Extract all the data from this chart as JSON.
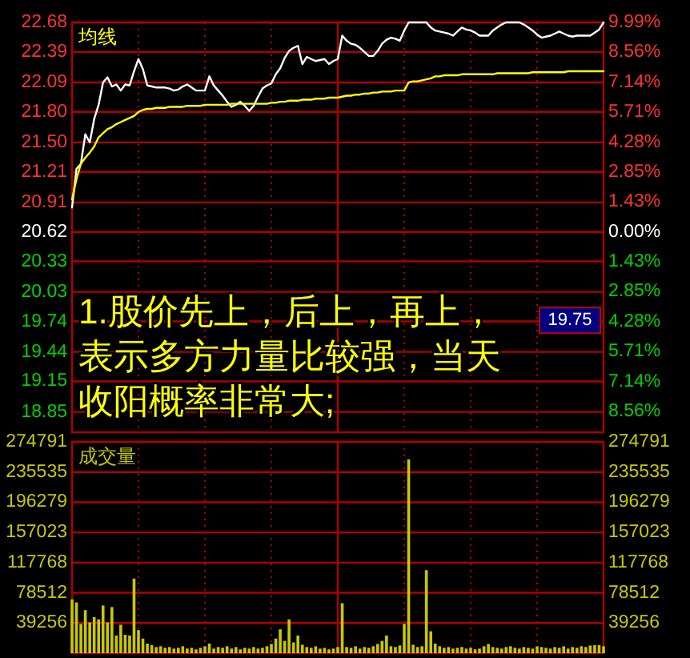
{
  "chart_data": [
    {
      "type": "line",
      "categories": [
        null,
        null,
        null,
        null,
        null,
        null,
        null,
        null,
        null,
        null,
        null,
        null,
        null,
        null,
        null,
        null,
        null,
        null,
        null,
        null,
        null,
        null,
        null,
        null,
        null,
        null,
        null,
        null,
        null,
        null,
        null,
        null,
        null,
        null,
        null,
        null,
        null,
        null,
        null,
        null,
        null,
        null,
        null,
        null,
        null,
        null,
        null,
        null,
        null,
        null,
        null,
        null,
        null,
        null,
        null,
        null,
        null,
        null,
        null,
        null,
        null,
        null,
        null,
        null,
        null,
        null,
        null,
        null,
        null,
        null,
        null,
        null,
        null,
        null,
        null,
        null,
        null,
        null,
        null,
        null,
        null,
        null,
        null,
        null,
        null,
        null,
        null,
        null,
        null,
        null,
        null,
        null,
        null,
        null,
        null,
        null,
        null,
        null,
        null,
        null,
        null,
        null,
        null,
        null,
        null,
        null,
        null,
        null,
        null,
        null,
        null,
        null,
        null,
        null,
        null,
        null,
        null,
        null,
        null,
        null,
        null
      ],
      "series": [
        {
          "color": "#ffffff",
          "values": [
            20.86,
            21.24,
            21.29,
            21.58,
            21.5,
            21.73,
            21.87,
            22.09,
            22.14,
            22.05,
            22.07,
            22.01,
            22.07,
            22.06,
            22.2,
            22.32,
            22.22,
            22.06,
            22.05,
            22.04,
            22.04,
            22.04,
            22.03,
            22.01,
            22.02,
            22.05,
            22.07,
            22.04,
            22.01,
            22.01,
            22.01,
            22.15,
            22.06,
            22.01,
            21.96,
            21.9,
            21.85,
            21.87,
            21.9,
            21.86,
            21.81,
            21.86,
            21.95,
            22.03,
            22.06,
            22.08,
            22.17,
            22.23,
            22.33,
            22.4,
            22.43,
            22.45,
            22.27,
            22.34,
            22.32,
            22.3,
            22.31,
            22.32,
            22.27,
            22.3,
            22.32,
            22.55,
            22.5,
            22.47,
            22.46,
            22.43,
            22.39,
            22.35,
            22.35,
            22.4,
            22.47,
            22.51,
            22.53,
            22.52,
            22.5,
            22.6,
            22.68,
            22.68,
            22.68,
            22.68,
            22.68,
            22.63,
            22.6,
            22.59,
            22.58,
            22.57,
            22.55,
            22.59,
            22.63,
            22.61,
            22.6,
            22.58,
            22.55,
            22.55,
            22.55,
            22.6,
            22.63,
            22.66,
            22.68,
            22.68,
            22.68,
            22.68,
            22.66,
            22.63,
            22.6,
            22.56,
            22.53,
            22.54,
            22.55,
            22.57,
            22.59,
            22.57,
            22.55,
            22.54,
            22.55,
            22.55,
            22.55,
            22.55,
            22.58,
            22.61,
            22.68
          ]
        },
        {
          "name": "均线",
          "color": "#ffff00",
          "values": [
            20.94,
            21.14,
            21.29,
            21.35,
            21.4,
            21.46,
            21.55,
            21.59,
            21.63,
            21.65,
            21.68,
            21.7,
            21.72,
            21.74,
            21.76,
            21.8,
            21.82,
            21.83,
            21.83,
            21.84,
            21.84,
            21.84,
            21.85,
            21.85,
            21.85,
            21.85,
            21.86,
            21.86,
            21.86,
            21.86,
            21.87,
            21.87,
            21.87,
            21.87,
            21.87,
            21.87,
            21.88,
            21.88,
            21.88,
            21.88,
            21.88,
            21.88,
            21.88,
            21.88,
            21.88,
            21.89,
            21.89,
            21.9,
            21.9,
            21.91,
            21.91,
            21.91,
            21.92,
            21.92,
            21.92,
            21.93,
            21.93,
            21.93,
            21.94,
            21.94,
            21.94,
            21.95,
            21.96,
            21.96,
            21.97,
            21.97,
            21.98,
            21.98,
            21.99,
            21.99,
            22.0,
            22.0,
            22.0,
            22.01,
            22.01,
            22.01,
            22.09,
            22.1,
            22.1,
            22.11,
            22.12,
            22.13,
            22.15,
            22.15,
            22.16,
            22.16,
            22.16,
            22.16,
            22.17,
            22.17,
            22.17,
            22.17,
            22.17,
            22.17,
            22.17,
            22.17,
            22.18,
            22.18,
            22.18,
            22.18,
            22.18,
            22.18,
            22.18,
            22.18,
            22.19,
            22.19,
            22.19,
            22.19,
            22.19,
            22.19,
            22.19,
            22.19,
            22.2,
            22.2,
            22.2,
            22.2,
            22.2,
            22.2,
            22.2,
            22.2,
            22.2
          ]
        }
      ],
      "ylim": [
        18.65,
        22.68
      ],
      "yticks": [
        22.68,
        22.39,
        22.09,
        {
          "value": 21.8,
          "label": "21.80"
        },
        {
          "value": 21.5,
          "label": "21.50"
        },
        21.21,
        20.91,
        20.62,
        20.33,
        20.03,
        19.74,
        19.44,
        19.15,
        18.85
      ],
      "y2lim": [
        -9.55,
        9.99
      ],
      "y2ticks": [
        {
          "value": 9.99,
          "label": "9.99%"
        },
        {
          "value": 8.56,
          "label": "8.56%"
        },
        {
          "value": 7.14,
          "label": "7.14%"
        },
        {
          "value": 5.71,
          "label": "5.71%"
        },
        {
          "value": 4.28,
          "label": "4.28%"
        },
        {
          "value": 2.85,
          "label": "2.85%"
        },
        {
          "value": 1.43,
          "label": "1.43%"
        },
        {
          "value": 0,
          "label": "0.00%"
        },
        {
          "value": -1.43,
          "label": "1.43%"
        },
        {
          "value": -2.85,
          "label": "2.85%"
        },
        {
          "value": -4.28,
          "label": "4.28%"
        },
        {
          "value": -5.71,
          "label": "5.71%"
        },
        {
          "value": -7.14,
          "label": "7.14%"
        },
        {
          "value": -8.56,
          "label": "8.56%"
        }
      ],
      "grid": true,
      "tick_labels": "y",
      "annotations": [
        "1.股价先上，后上，再上，表示多方力量比较强，当天收阳概率非常大;",
        {
          "text": "19.75",
          "y": 19.75
        }
      ]
    },
    {
      "type": "bar",
      "categories": [
        null,
        null,
        null,
        null,
        null,
        null,
        null,
        null,
        null,
        null,
        null,
        null,
        null,
        null,
        null,
        null,
        null,
        null,
        null,
        null,
        null,
        null,
        null,
        null,
        null,
        null,
        null,
        null,
        null,
        null,
        null,
        null,
        null,
        null,
        null,
        null,
        null,
        null,
        null,
        null,
        null,
        null,
        null,
        null,
        null,
        null,
        null,
        null,
        null,
        null,
        null,
        null,
        null,
        null,
        null,
        null,
        null,
        null,
        null,
        null,
        null,
        null,
        null,
        null,
        null,
        null,
        null,
        null,
        null,
        null,
        null,
        null,
        null,
        null,
        null,
        null,
        null,
        null,
        null,
        null,
        null,
        null,
        null,
        null,
        null,
        null,
        null,
        null,
        null,
        null,
        null,
        null,
        null,
        null,
        null,
        null,
        null,
        null,
        null,
        null,
        null,
        null,
        null,
        null,
        null,
        null,
        null,
        null,
        null,
        null,
        null,
        null,
        null,
        null,
        null,
        null,
        null,
        null,
        null,
        null,
        null
      ],
      "series": [
        {
          "name": "成交量",
          "color": "#c8c800",
          "values": [
            70000,
            66000,
            38000,
            56000,
            40000,
            47000,
            44000,
            62000,
            40000,
            60000,
            23000,
            37000,
            24000,
            23000,
            97000,
            30000,
            19000,
            12500,
            10400,
            8000,
            9000,
            7000,
            8000,
            6000,
            7000,
            9000,
            6000,
            7000,
            5000,
            7000,
            9000,
            12500,
            6000,
            8000,
            7000,
            9000,
            6000,
            8000,
            5000,
            7000,
            6000,
            8000,
            6000,
            7000,
            9000,
            12000,
            19000,
            31000,
            16000,
            44000,
            14000,
            23000,
            11000,
            8000,
            7000,
            9000,
            6000,
            7000,
            5000,
            6000,
            8000,
            65000,
            8000,
            7000,
            9000,
            6000,
            8000,
            7000,
            9000,
            12000,
            16000,
            23000,
            9000,
            8000,
            10000,
            38000,
            252000,
            11000,
            8000,
            9000,
            108000,
            28500,
            12500,
            9000,
            7000,
            8000,
            6000,
            7000,
            8000,
            6000,
            7000,
            5000,
            6000,
            9000,
            12000,
            8000,
            7000,
            6000,
            8000,
            9000,
            7000,
            6000,
            8000,
            7000,
            6000,
            9000,
            8000,
            7000,
            6000,
            8000,
            7000,
            9000,
            6000,
            8000,
            7000,
            9000,
            8000,
            10000,
            10400,
            10400,
            9000
          ]
        }
      ],
      "ylim": [
        0,
        274791
      ],
      "yticks": [
        274791,
        235535,
        196279,
        157023,
        117768,
        78512,
        39256
      ],
      "y2lim": [
        0,
        274791
      ],
      "y2ticks": [
        274791,
        235535,
        196279,
        157023,
        117768,
        78512,
        39256
      ],
      "grid": true,
      "tick_labels": "y"
    }
  ]
}
